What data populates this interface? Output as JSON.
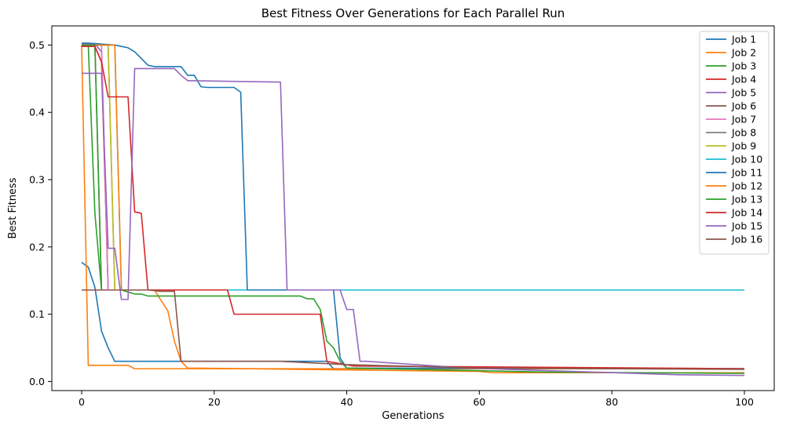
{
  "chart_data": {
    "type": "line",
    "title": "Best Fitness Over Generations for Each Parallel Run",
    "xlabel": "Generations",
    "ylabel": "Best Fitness",
    "xlim": [
      -4.5,
      104.5
    ],
    "ylim": [
      -0.0135,
      0.5285
    ],
    "xticks": [
      0,
      20,
      40,
      60,
      80,
      100
    ],
    "xtick_labels": [
      "0",
      "20",
      "40",
      "60",
      "80",
      "100"
    ],
    "yticks": [
      0.0,
      0.1,
      0.2,
      0.3,
      0.4,
      0.5
    ],
    "ytick_labels": [
      "0.0",
      "0.1",
      "0.2",
      "0.3",
      "0.4",
      "0.5"
    ],
    "grid": false,
    "legend_position": "upper right",
    "series": [
      {
        "name": "Job 1",
        "color": "#1f77b4",
        "x": [
          0,
          1,
          2,
          3,
          4,
          5,
          37,
          38,
          100
        ],
        "y": [
          0.177,
          0.17,
          0.14,
          0.075,
          0.05,
          0.03,
          0.03,
          0.019,
          0.019
        ]
      },
      {
        "name": "Job 2",
        "color": "#ff7f0e",
        "x": [
          0,
          1,
          7,
          8,
          100
        ],
        "y": [
          0.5,
          0.024,
          0.024,
          0.019,
          0.019
        ]
      },
      {
        "name": "Job 3",
        "color": "#2ca02c",
        "x": [
          0,
          1,
          2,
          3,
          100
        ],
        "y": [
          0.5,
          0.5,
          0.25,
          0.136,
          0.136
        ]
      },
      {
        "name": "Job 4",
        "color": "#d62728",
        "x": [
          0,
          2,
          3,
          4,
          100
        ],
        "y": [
          0.498,
          0.498,
          0.475,
          0.136,
          0.136
        ]
      },
      {
        "name": "Job 5",
        "color": "#9467bd",
        "x": [
          0,
          2,
          3,
          4,
          100
        ],
        "y": [
          0.502,
          0.502,
          0.49,
          0.136,
          0.136
        ]
      },
      {
        "name": "Job 6",
        "color": "#8c564b",
        "x": [
          0,
          2,
          3,
          100
        ],
        "y": [
          0.5,
          0.5,
          0.136,
          0.136
        ]
      },
      {
        "name": "Job 7",
        "color": "#e377c2",
        "x": [
          0,
          3,
          4,
          100
        ],
        "y": [
          0.5,
          0.5,
          0.136,
          0.136
        ]
      },
      {
        "name": "Job 8",
        "color": "#7f7f7f",
        "x": [
          0,
          4,
          5,
          100
        ],
        "y": [
          0.5,
          0.5,
          0.136,
          0.136
        ]
      },
      {
        "name": "Job 9",
        "color": "#bcbd22",
        "x": [
          0,
          4,
          5,
          100
        ],
        "y": [
          0.5,
          0.5,
          0.136,
          0.136
        ]
      },
      {
        "name": "Job 10",
        "color": "#17becf",
        "x": [
          0,
          5,
          6,
          100
        ],
        "y": [
          0.5,
          0.5,
          0.136,
          0.136
        ]
      },
      {
        "name": "Job 11",
        "color": "#1f77b4",
        "x": [
          0,
          1,
          5,
          6,
          7,
          8,
          9,
          10,
          11,
          15,
          16,
          17,
          18,
          19,
          20,
          23,
          24,
          25,
          38,
          39,
          40,
          100
        ],
        "y": [
          0.503,
          0.503,
          0.5,
          0.498,
          0.496,
          0.49,
          0.48,
          0.47,
          0.468,
          0.468,
          0.455,
          0.455,
          0.438,
          0.437,
          0.437,
          0.437,
          0.43,
          0.136,
          0.136,
          0.035,
          0.02,
          0.019
        ]
      },
      {
        "name": "Job 12",
        "color": "#ff7f0e",
        "x": [
          0,
          5,
          6,
          11,
          12,
          13,
          14,
          15,
          16,
          50,
          60,
          62,
          100
        ],
        "y": [
          0.5,
          0.5,
          0.136,
          0.136,
          0.12,
          0.105,
          0.06,
          0.03,
          0.02,
          0.016,
          0.015,
          0.013,
          0.013
        ]
      },
      {
        "name": "Job 13",
        "color": "#2ca02c",
        "x": [
          0,
          2,
          3,
          6,
          7,
          8,
          9,
          10,
          11,
          33,
          34,
          35,
          36,
          37,
          38,
          39,
          40,
          70,
          100
        ],
        "y": [
          0.5,
          0.5,
          0.136,
          0.136,
          0.133,
          0.13,
          0.13,
          0.127,
          0.127,
          0.127,
          0.123,
          0.123,
          0.107,
          0.06,
          0.05,
          0.03,
          0.02,
          0.014,
          0.012
        ]
      },
      {
        "name": "Job 14",
        "color": "#d62728",
        "x": [
          0,
          2,
          3,
          4,
          5,
          6,
          7,
          8,
          9,
          10,
          22,
          23,
          24,
          36,
          37,
          41,
          100
        ],
        "y": [
          0.498,
          0.498,
          0.475,
          0.423,
          0.423,
          0.423,
          0.423,
          0.252,
          0.25,
          0.136,
          0.136,
          0.1,
          0.1,
          0.1,
          0.03,
          0.023,
          0.019
        ]
      },
      {
        "name": "Job 15",
        "color": "#9467bd",
        "x": [
          0,
          1,
          3,
          4,
          5,
          6,
          7,
          8,
          10,
          13,
          14,
          15,
          16,
          17,
          30,
          31,
          39,
          40,
          41,
          42,
          43,
          58,
          90,
          100
        ],
        "y": [
          0.458,
          0.458,
          0.458,
          0.198,
          0.198,
          0.122,
          0.122,
          0.465,
          0.465,
          0.465,
          0.465,
          0.455,
          0.447,
          0.447,
          0.445,
          0.136,
          0.136,
          0.107,
          0.107,
          0.03,
          0.03,
          0.02,
          0.01,
          0.009
        ]
      },
      {
        "name": "Job 16",
        "color": "#8c564b",
        "x": [
          0,
          10,
          11,
          12,
          13,
          14,
          15,
          20,
          30,
          40,
          60,
          100
        ],
        "y": [
          0.136,
          0.136,
          0.135,
          0.134,
          0.134,
          0.134,
          0.03,
          0.03,
          0.03,
          0.025,
          0.02,
          0.018
        ]
      }
    ]
  }
}
